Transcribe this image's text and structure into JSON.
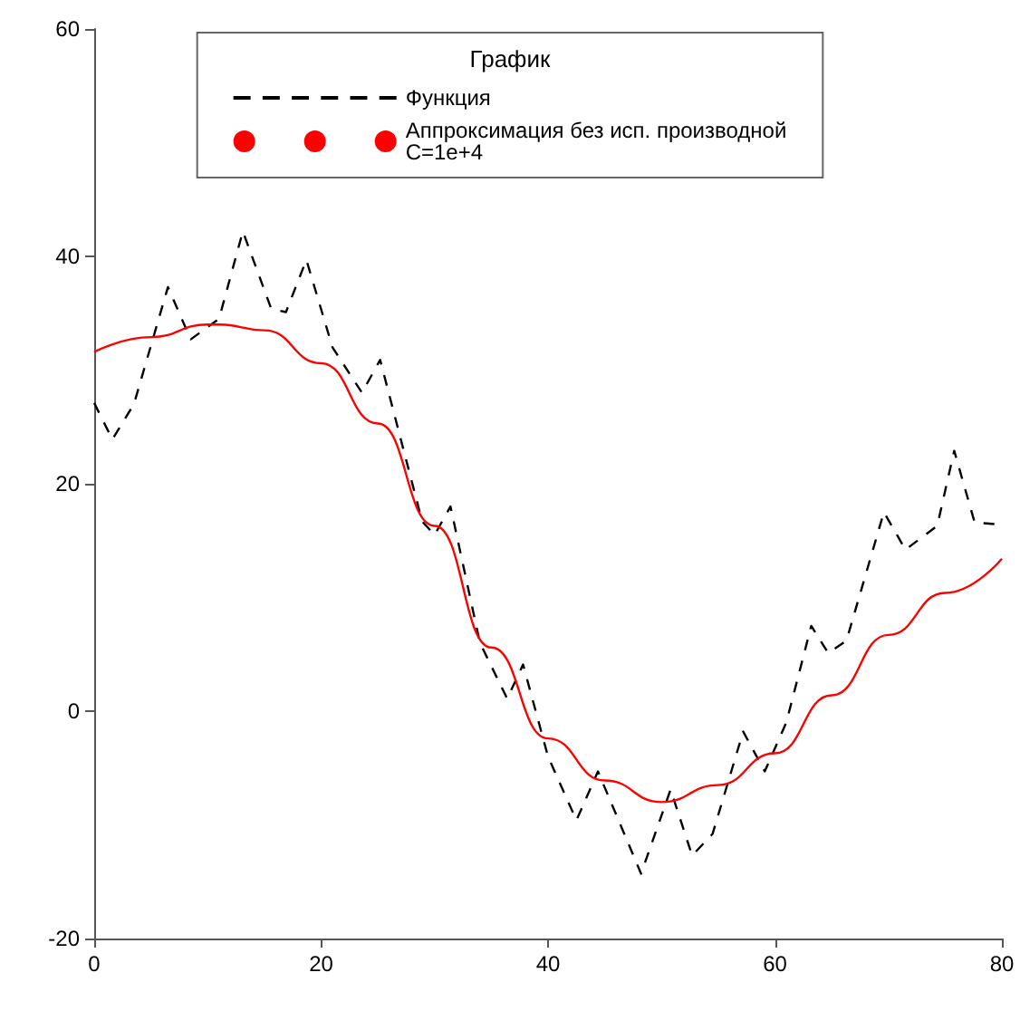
{
  "chart_data": {
    "type": "line",
    "legend_title": "График",
    "legend": "top",
    "grid": false,
    "xlim": [
      0,
      80
    ],
    "xticks": [
      0,
      20,
      40,
      60,
      80
    ],
    "ylim": [
      -20,
      60
    ],
    "yticks": [
      -20,
      0,
      20,
      40,
      60
    ],
    "series": [
      {
        "name": "Функция",
        "color": "#000000",
        "line_style": "dashed",
        "x": [
          0,
          1.6,
          3.5,
          6.5,
          8.5,
          11,
          13.1,
          15.6,
          16.9,
          18.7,
          21,
          23.6,
          25.2,
          28.9,
          30,
          31.4,
          34,
          36.4,
          37.8,
          40,
          42.5,
          44.4,
          48.2,
          50.8,
          52.7,
          54.5,
          57.2,
          59.1,
          61,
          63.2,
          64.7,
          66.3,
          69.6,
          71.5,
          74.3,
          75.8,
          77.6,
          80
        ],
        "values": [
          27.1,
          23.9,
          27,
          37.3,
          32.7,
          34.5,
          42.2,
          35.4,
          35.1,
          39.7,
          32,
          28,
          30.9,
          16.7,
          15.5,
          18,
          6,
          1.1,
          4.1,
          -4,
          -9.6,
          -5.3,
          -14.3,
          -6.9,
          -12.7,
          -10.8,
          -1.8,
          -5.3,
          -1,
          7.5,
          5.1,
          6.2,
          17.5,
          14.2,
          16.3,
          22.9,
          16.6,
          16.4
        ]
      },
      {
        "name": "Аппроксимация без исп. производной\nC=1e+4",
        "color": "#ff0000",
        "line_style": "solid",
        "x": [
          0,
          5,
          10,
          11,
          15,
          20,
          25,
          30,
          35,
          40,
          45,
          50,
          55,
          60,
          65,
          70,
          75,
          80
        ],
        "values": [
          31.6,
          32.9,
          34,
          34,
          33.5,
          30.6,
          25.3,
          16.3,
          5.6,
          -2.4,
          -6.1,
          -8,
          -6.5,
          -3.7,
          1.4,
          6.7,
          10.4,
          13.4
        ]
      }
    ]
  }
}
